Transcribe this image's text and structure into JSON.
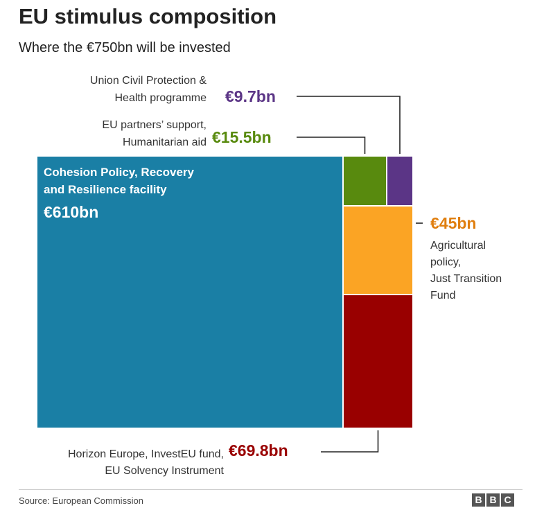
{
  "chart_data": {
    "type": "treemap",
    "title": "EU stimulus composition",
    "subtitle": "Where the €750bn will be invested",
    "total_label": "€750bn",
    "unit": "€bn",
    "series": [
      {
        "name": "Cohesion Policy, Recovery and Resilience facility",
        "label_lines": [
          "Cohesion Policy, Recovery",
          "and Resilience facility"
        ],
        "value_label": "€610bn",
        "value": 610,
        "color": "#1a7fa5"
      },
      {
        "name": "EU partners' support, Humanitarian aid",
        "label_lines": [
          "EU partners’ support,",
          "Humanitarian aid"
        ],
        "value_label": "€15.5bn",
        "value": 15.5,
        "color": "#588a0e"
      },
      {
        "name": "Union Civil Protection & Health programme",
        "label_lines": [
          "Union Civil Protection &",
          "Health programme"
        ],
        "value_label": "€9.7bn",
        "value": 9.7,
        "color": "#5b3586"
      },
      {
        "name": "Agricultural policy, Just Transition Fund",
        "label_lines": [
          "Agricultural",
          "policy,",
          "Just Transition",
          "Fund"
        ],
        "value_label": "€45bn",
        "value": 45,
        "color": "#fba424",
        "value_color": "#e07f10"
      },
      {
        "name": "Horizon Europe, InvestEU fund, EU Solvency Instrument",
        "label_lines": [
          "Horizon Europe, InvestEU fund,",
          "EU Solvency Instrument"
        ],
        "value_label": "€69.8bn",
        "value": 69.8,
        "color": "#990000"
      }
    ]
  },
  "footer": {
    "source": "Source: European Commission",
    "logo_letters": [
      "B",
      "B",
      "C"
    ]
  }
}
